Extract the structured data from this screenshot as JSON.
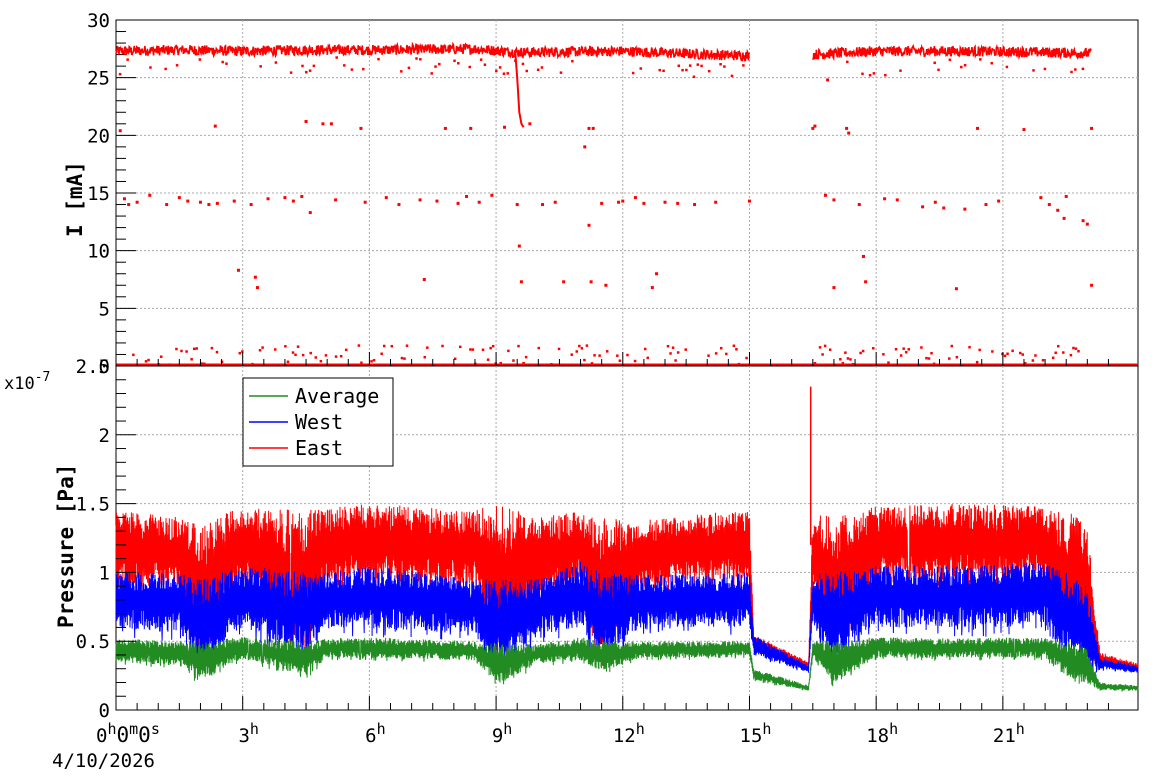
{
  "chart_data": [
    {
      "type": "scatter",
      "panel": "top",
      "ylabel": "I [mA]",
      "ylim": [
        0,
        30
      ],
      "yticks": [
        0,
        5,
        10,
        15,
        20,
        25,
        30
      ],
      "xlim_hours": [
        0,
        24.2
      ],
      "grid": true,
      "color": "#ff0000",
      "series": [
        {
          "baseline_main": [
            [
              0,
              27.3
            ],
            [
              1.5,
              27.4
            ],
            [
              3,
              27.3
            ],
            [
              4.5,
              27.4
            ],
            [
              6,
              27.4
            ],
            [
              8.5,
              27.5
            ],
            [
              9.5,
              27.2
            ],
            [
              12,
              27.3
            ],
            [
              14,
              27.0
            ],
            [
              15,
              26.9
            ]
          ],
          "baseline_gap_hours": [
            15.05,
            16.5
          ],
          "baseline_after": [
            [
              16.5,
              27.0
            ],
            [
              18,
              27.3
            ],
            [
              20,
              27.3
            ],
            [
              22,
              27.2
            ],
            [
              23.1,
              27.1
            ]
          ],
          "drop_event": [
            [
              9.45,
              27.4
            ],
            [
              9.5,
              25.0
            ],
            [
              9.55,
              22.0
            ],
            [
              9.6,
              21.0
            ],
            [
              9.65,
              20.7
            ]
          ],
          "scattered_points": [
            [
              0.1,
              20.4
            ],
            [
              0.2,
              14.5
            ],
            [
              0.3,
              14.0
            ],
            [
              0.5,
              14.2
            ],
            [
              0.8,
              14.8
            ],
            [
              1.2,
              14.0
            ],
            [
              1.5,
              14.6
            ],
            [
              1.7,
              14.3
            ],
            [
              2.0,
              14.2
            ],
            [
              2.2,
              14.0
            ],
            [
              2.35,
              20.8
            ],
            [
              2.4,
              14.1
            ],
            [
              2.8,
              14.3
            ],
            [
              2.9,
              8.3
            ],
            [
              3.2,
              14.0
            ],
            [
              3.3,
              7.7
            ],
            [
              3.35,
              6.8
            ],
            [
              3.6,
              14.5
            ],
            [
              4.0,
              14.6
            ],
            [
              4.2,
              14.3
            ],
            [
              4.4,
              14.7
            ],
            [
              4.5,
              21.2
            ],
            [
              4.6,
              13.3
            ],
            [
              4.9,
              21.0
            ],
            [
              5.1,
              21.0
            ],
            [
              5.2,
              14.4
            ],
            [
              5.8,
              20.6
            ],
            [
              5.9,
              14.2
            ],
            [
              6.4,
              14.6
            ],
            [
              6.7,
              14.0
            ],
            [
              7.2,
              14.4
            ],
            [
              7.3,
              7.5
            ],
            [
              7.6,
              14.3
            ],
            [
              7.8,
              20.6
            ],
            [
              8.1,
              14.1
            ],
            [
              8.3,
              14.7
            ],
            [
              8.4,
              20.6
            ],
            [
              8.6,
              14.2
            ],
            [
              8.9,
              14.8
            ],
            [
              9.2,
              20.7
            ],
            [
              9.5,
              14.0
            ],
            [
              9.55,
              10.4
            ],
            [
              9.6,
              7.3
            ],
            [
              9.8,
              21.0
            ],
            [
              10.1,
              14.0
            ],
            [
              10.4,
              14.2
            ],
            [
              10.6,
              7.3
            ],
            [
              11.1,
              19.0
            ],
            [
              11.2,
              12.2
            ],
            [
              11.2,
              20.6
            ],
            [
              11.25,
              7.3
            ],
            [
              11.3,
              20.6
            ],
            [
              11.5,
              14.1
            ],
            [
              11.6,
              7.0
            ],
            [
              11.9,
              14.2
            ],
            [
              12.0,
              14.3
            ],
            [
              12.3,
              14.6
            ],
            [
              12.5,
              14.1
            ],
            [
              12.7,
              6.8
            ],
            [
              12.8,
              8.0
            ],
            [
              13.0,
              14.2
            ],
            [
              13.3,
              14.1
            ],
            [
              13.7,
              14.0
            ],
            [
              14.2,
              14.2
            ],
            [
              15.0,
              14.3
            ],
            [
              16.5,
              20.6
            ],
            [
              16.55,
              20.8
            ],
            [
              16.8,
              14.8
            ],
            [
              16.85,
              24.8
            ],
            [
              17.0,
              14.4
            ],
            [
              17.0,
              6.8
            ],
            [
              17.3,
              20.6
            ],
            [
              17.35,
              20.2
            ],
            [
              17.6,
              14.0
            ],
            [
              17.7,
              9.5
            ],
            [
              17.75,
              7.3
            ],
            [
              18.2,
              14.5
            ],
            [
              18.5,
              14.4
            ],
            [
              19.1,
              13.8
            ],
            [
              19.4,
              14.2
            ],
            [
              19.6,
              13.7
            ],
            [
              19.9,
              6.7
            ],
            [
              20.1,
              13.6
            ],
            [
              20.4,
              20.6
            ],
            [
              20.6,
              14.0
            ],
            [
              20.9,
              14.3
            ],
            [
              21.5,
              20.5
            ],
            [
              21.9,
              14.6
            ],
            [
              22.1,
              14.0
            ],
            [
              22.3,
              13.5
            ],
            [
              22.45,
              12.8
            ],
            [
              22.5,
              14.7
            ],
            [
              22.9,
              12.6
            ],
            [
              23.0,
              12.3
            ],
            [
              23.1,
              20.6
            ],
            [
              23.1,
              7.0
            ]
          ],
          "low_points_range": [
            0,
            1.8
          ]
        }
      ]
    },
    {
      "type": "line",
      "panel": "bottom",
      "ylabel": "Pressure [Pa]",
      "y_exponent": "x10-7",
      "ylim": [
        0,
        2.5
      ],
      "yticks": [
        0,
        0.5,
        1,
        1.5,
        2,
        2.5
      ],
      "ytick_labels": [
        "0",
        "0.5",
        "1",
        "1.5",
        "2",
        "2.5"
      ],
      "xlim_hours": [
        0,
        24.2
      ],
      "grid": true,
      "legend": "top-left",
      "x_ticks_hours": [
        0,
        3,
        6,
        9,
        12,
        15,
        18,
        21
      ],
      "x_tick_labels": [
        {
          "n": "0",
          "u": "h",
          "extra": "0m0s"
        },
        {
          "n": "3",
          "u": "h"
        },
        {
          "n": "6",
          "u": "h"
        },
        {
          "n": "9",
          "u": "h"
        },
        {
          "n": "12",
          "u": "h"
        },
        {
          "n": "15",
          "u": "h"
        },
        {
          "n": "18",
          "u": "h"
        },
        {
          "n": "21",
          "u": "h"
        }
      ],
      "date_label": "4/10/2026",
      "series": [
        {
          "name": "Average",
          "color": "#228b22",
          "envelope": [
            [
              0,
              0.35,
              0.52
            ],
            [
              1.5,
              0.32,
              0.5
            ],
            [
              2.0,
              0.2,
              0.5
            ],
            [
              3,
              0.38,
              0.53
            ],
            [
              4.5,
              0.25,
              0.5
            ],
            [
              5,
              0.38,
              0.52
            ],
            [
              6,
              0.38,
              0.53
            ],
            [
              8.5,
              0.36,
              0.5
            ],
            [
              9.0,
              0.18,
              0.48
            ],
            [
              10,
              0.34,
              0.48
            ],
            [
              11,
              0.36,
              0.53
            ],
            [
              11.5,
              0.28,
              0.5
            ],
            [
              12.5,
              0.38,
              0.5
            ],
            [
              14.5,
              0.38,
              0.5
            ],
            [
              15.0,
              0.4,
              0.5
            ],
            [
              15.1,
              0.22,
              0.3
            ],
            [
              16.4,
              0.14,
              0.18
            ],
            [
              16.5,
              0.38,
              0.5
            ],
            [
              17,
              0.2,
              0.5
            ],
            [
              18,
              0.38,
              0.53
            ],
            [
              20,
              0.38,
              0.52
            ],
            [
              22,
              0.38,
              0.53
            ],
            [
              22.5,
              0.25,
              0.5
            ],
            [
              23.0,
              0.18,
              0.45
            ],
            [
              23.3,
              0.14,
              0.2
            ],
            [
              24.2,
              0.14,
              0.18
            ]
          ]
        },
        {
          "name": "West",
          "color": "#0000ff",
          "envelope": [
            [
              0,
              0.6,
              1.0
            ],
            [
              1.5,
              0.55,
              1.0
            ],
            [
              2.0,
              0.3,
              0.95
            ],
            [
              3,
              0.6,
              1.05
            ],
            [
              4.5,
              0.4,
              1.0
            ],
            [
              5,
              0.6,
              1.0
            ],
            [
              6,
              0.6,
              1.05
            ],
            [
              8.5,
              0.55,
              0.95
            ],
            [
              9.0,
              0.3,
              0.95
            ],
            [
              10,
              0.55,
              0.95
            ],
            [
              11,
              0.6,
              1.08
            ],
            [
              11.5,
              0.4,
              1.0
            ],
            [
              12.5,
              0.6,
              0.98
            ],
            [
              14.5,
              0.6,
              1.0
            ],
            [
              15.0,
              0.6,
              1.0
            ],
            [
              15.1,
              0.4,
              0.55
            ],
            [
              16.4,
              0.27,
              0.32
            ],
            [
              16.5,
              0.6,
              1.0
            ],
            [
              17,
              0.35,
              1.0
            ],
            [
              18,
              0.6,
              1.05
            ],
            [
              20,
              0.6,
              1.05
            ],
            [
              22,
              0.6,
              1.08
            ],
            [
              22.5,
              0.4,
              1.0
            ],
            [
              23.0,
              0.3,
              0.9
            ],
            [
              23.3,
              0.3,
              0.38
            ],
            [
              24.2,
              0.27,
              0.32
            ]
          ]
        },
        {
          "name": "East",
          "color": "#ff0000",
          "envelope": [
            [
              0,
              0.9,
              1.45
            ],
            [
              1.5,
              0.9,
              1.4
            ],
            [
              2.0,
              0.35,
              1.35
            ],
            [
              3,
              0.95,
              1.48
            ],
            [
              4.5,
              0.4,
              1.45
            ],
            [
              5,
              0.95,
              1.48
            ],
            [
              6,
              0.95,
              1.5
            ],
            [
              8.5,
              0.9,
              1.45
            ],
            [
              9.0,
              0.35,
              1.5
            ],
            [
              10,
              0.8,
              1.4
            ],
            [
              11,
              0.95,
              1.45
            ],
            [
              11.5,
              0.4,
              1.4
            ],
            [
              12.5,
              0.9,
              1.38
            ],
            [
              14.5,
              0.95,
              1.45
            ],
            [
              15.0,
              0.9,
              1.45
            ],
            [
              15.1,
              0.45,
              0.55
            ],
            [
              16.4,
              0.3,
              0.35
            ],
            [
              16.5,
              0.9,
              1.45
            ],
            [
              17,
              0.4,
              1.4
            ],
            [
              18,
              0.95,
              1.48
            ],
            [
              20,
              0.95,
              1.5
            ],
            [
              22,
              0.95,
              1.48
            ],
            [
              22.5,
              0.45,
              1.45
            ],
            [
              23.0,
              0.35,
              1.35
            ],
            [
              23.3,
              0.33,
              0.42
            ],
            [
              24.2,
              0.28,
              0.34
            ]
          ],
          "spike": [
            16.45,
            2.35
          ]
        }
      ]
    }
  ]
}
